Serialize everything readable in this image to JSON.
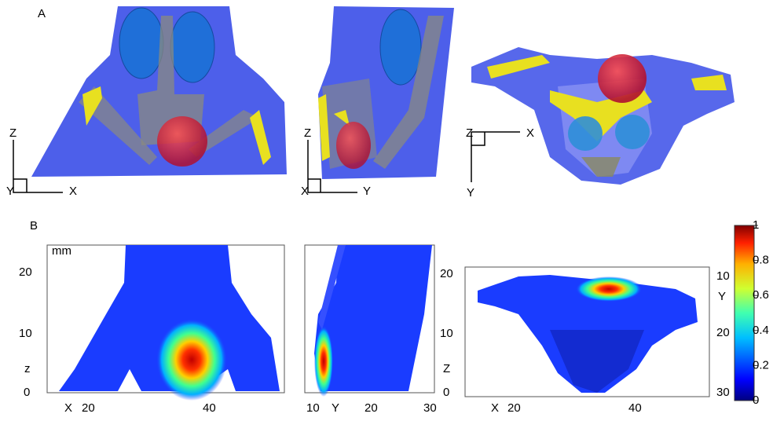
{
  "panel_a": {
    "label": "A",
    "views": [
      {
        "vertical": "Z",
        "corner": "Y",
        "horizontal": "X"
      },
      {
        "vertical": "Z",
        "corner": "X",
        "horizontal": "Y"
      },
      {
        "corner": "Z",
        "horizontal": "X",
        "vertical": "Y"
      }
    ]
  },
  "panel_b": {
    "label": "B",
    "unit": "mm",
    "views": [
      {
        "side_ticks": [
          "20",
          "10",
          "0"
        ],
        "side_axis": "z",
        "bottom_axis": "X",
        "bottom_ticks": [
          "20",
          "40"
        ]
      },
      {
        "side_ticks": [
          "20",
          "10",
          "0"
        ],
        "side_axis": "Z",
        "bottom_ticks": [
          "10",
          "20",
          "30"
        ],
        "bottom_axis": "Y"
      },
      {
        "side_ticks": [
          "10",
          "20",
          "30"
        ],
        "side_axis": "Y",
        "bottom_axis": "X",
        "bottom_ticks": [
          "20",
          "40"
        ]
      }
    ]
  },
  "colorbar": {
    "ticks": [
      1,
      0.8,
      0.6,
      0.4,
      0.2,
      0
    ]
  }
}
